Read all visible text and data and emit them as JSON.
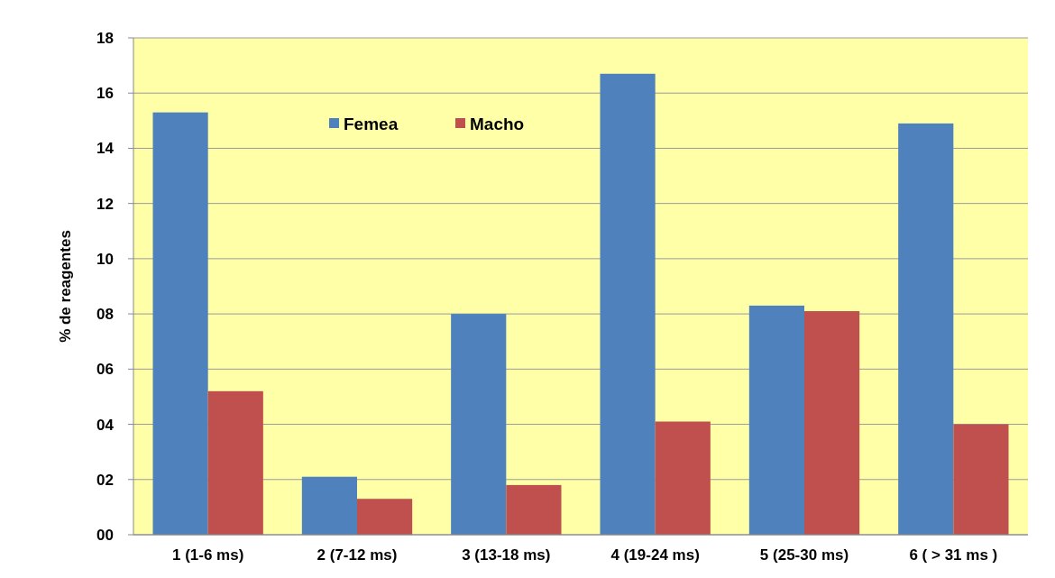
{
  "chart_data": {
    "type": "bar",
    "ylabel": "% de reagentes",
    "categories": [
      "1 (1-6 ms)",
      "2 (7-12 ms)",
      "3 (13-18 ms)",
      "4 (19-24 ms)",
      "5 (25-30 ms)",
      "6 ( > 31 ms )"
    ],
    "series": [
      {
        "name": "Femea",
        "color": "#4f81bd",
        "values": [
          15.3,
          2.1,
          8.0,
          16.7,
          8.3,
          14.9
        ]
      },
      {
        "name": "Macho",
        "color": "#c0504d",
        "values": [
          5.2,
          1.3,
          1.8,
          4.1,
          8.1,
          4.0
        ]
      }
    ],
    "ylim": [
      0,
      18
    ],
    "yticks": [
      {
        "value": 0,
        "label": "00"
      },
      {
        "value": 2,
        "label": "02"
      },
      {
        "value": 4,
        "label": "04"
      },
      {
        "value": 6,
        "label": "06"
      },
      {
        "value": 8,
        "label": "08"
      },
      10,
      12,
      14,
      16,
      18
    ],
    "grid": "y",
    "legend": "top left"
  }
}
